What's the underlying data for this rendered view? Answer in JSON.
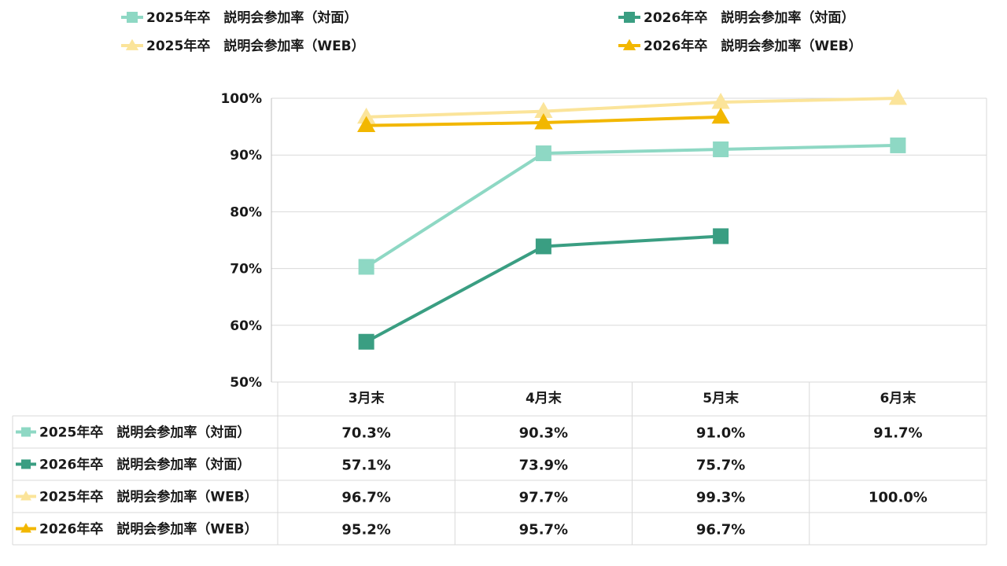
{
  "chart_data": {
    "type": "line",
    "categories": [
      "3月末",
      "4月末",
      "5月末",
      "6月末"
    ],
    "ylim": [
      50,
      100
    ],
    "yticks": [
      "50%",
      "60%",
      "70%",
      "80%",
      "90%",
      "100%"
    ],
    "ytick_values": [
      50,
      60,
      70,
      80,
      90,
      100
    ],
    "grid": true,
    "legend_position": "top",
    "series": [
      {
        "name": "2025年卒　説明会参加率（対面）",
        "values": [
          70.3,
          90.3,
          91.0,
          91.7
        ],
        "labels": [
          "70.3%",
          "90.3%",
          "91.0%",
          "91.7%"
        ],
        "color": "#8ed8c4",
        "marker": "square"
      },
      {
        "name": "2026年卒　説明会参加率（対面）",
        "values": [
          57.1,
          73.9,
          75.7,
          null
        ],
        "labels": [
          "57.1%",
          "73.9%",
          "75.7%",
          ""
        ],
        "color": "#3a9e82",
        "marker": "square"
      },
      {
        "name": "2025年卒　説明会参加率（WEB）",
        "values": [
          96.7,
          97.7,
          99.3,
          100.0
        ],
        "labels": [
          "96.7%",
          "97.7%",
          "99.3%",
          "100.0%"
        ],
        "color": "#fbe49a",
        "marker": "triangle"
      },
      {
        "name": "2026年卒　説明会参加率（WEB）",
        "values": [
          95.2,
          95.7,
          96.7,
          null
        ],
        "labels": [
          "95.2%",
          "95.7%",
          "96.7%",
          ""
        ],
        "color": "#f2b700",
        "marker": "triangle"
      }
    ]
  }
}
